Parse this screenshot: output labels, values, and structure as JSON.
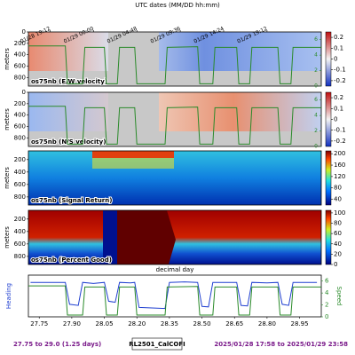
{
  "header": {
    "title": "UTC dates (MM/DD hh:mm)"
  },
  "chart_data": [
    {
      "type": "heatmap",
      "label": "os75nb (E/W velocity)",
      "ylabel": "meters",
      "xlim": [
        27.7,
        29.05
      ],
      "ylim": [
        950,
        0
      ],
      "yticks": [
        0,
        200,
        400,
        600,
        800
      ],
      "x2ticks": [
        {
          "value": 27.8,
          "label": "01/28 19:12"
        },
        {
          "value": 28.0,
          "label": "01/29 00:00"
        },
        {
          "value": 28.2,
          "label": "01/29 04:48"
        },
        {
          "value": 28.4,
          "label": "01/29 09:36"
        },
        {
          "value": 28.6,
          "label": "01/29 14:24"
        },
        {
          "value": 28.8,
          "label": "01/29 19:12"
        }
      ],
      "y2lim": [
        0,
        7
      ],
      "y2ticks": [
        0,
        2,
        4,
        6
      ],
      "clim": [
        -0.25,
        0.25
      ],
      "cticks": [
        -0.2,
        -0.1,
        0.0,
        0.1,
        0.2
      ],
      "colormap": "diverging"
    },
    {
      "type": "heatmap",
      "label": "os75nb (N/S velocity)",
      "ylabel": "meters",
      "xlim": [
        27.7,
        29.05
      ],
      "ylim": [
        950,
        0
      ],
      "yticks": [
        0,
        200,
        400,
        600,
        800
      ],
      "y2lim": [
        0,
        7
      ],
      "y2ticks": [
        0,
        2,
        4,
        6
      ],
      "clim": [
        -0.25,
        0.25
      ],
      "cticks": [
        -0.2,
        -0.1,
        0.0,
        0.1,
        0.2
      ],
      "colormap": "diverging"
    },
    {
      "type": "heatmap",
      "label": "os75nb (Signal Return)",
      "ylabel": "meters",
      "xlim": [
        27.7,
        29.05
      ],
      "ylim": [
        930,
        60
      ],
      "yticks": [
        200,
        400,
        600,
        800
      ],
      "clim": [
        20,
        210
      ],
      "cticks": [
        40,
        80,
        120,
        160,
        200
      ],
      "colormap": "jet"
    },
    {
      "type": "heatmap",
      "label": "os75nb (Percent Good)",
      "ylabel": "meters",
      "xlabel": "decimal day",
      "xlim": [
        27.7,
        29.05
      ],
      "ylim": [
        930,
        60
      ],
      "yticks": [
        200,
        400,
        600,
        800
      ],
      "clim": [
        0,
        105
      ],
      "cticks": [
        0,
        20,
        40,
        60,
        80,
        100
      ],
      "colormap": "jet"
    },
    {
      "type": "line",
      "ylabel": "Heading",
      "xlim": [
        27.7,
        29.05
      ],
      "ylim": [
        0,
        400
      ],
      "y2lim": [
        0,
        7
      ],
      "y2ticks": [
        0,
        2,
        4,
        6
      ],
      "xticks": [
        27.75,
        {
          "value": 27.9,
          "label": "27.90"
        },
        28.05,
        {
          "value": 28.2,
          "label": "28.20"
        },
        28.35,
        {
          "value": 28.5,
          "label": "28.50"
        },
        28.65,
        {
          "value": 28.8,
          "label": "28.80"
        },
        28.95
      ],
      "series": [
        {
          "name": "Heading",
          "color": "#1f3fd0",
          "axis": "y",
          "x": [
            27.71,
            27.8,
            27.87,
            27.89,
            27.93,
            27.95,
            28.0,
            28.05,
            28.07,
            28.1,
            28.12,
            28.17,
            28.19,
            28.21,
            28.27,
            28.33,
            28.35,
            28.42,
            28.48,
            28.5,
            28.53,
            28.55,
            28.6,
            28.66,
            28.68,
            28.71,
            28.73,
            28.8,
            28.85,
            28.87,
            28.9,
            28.92,
            28.98,
            29.03
          ],
          "values": [
            330,
            330,
            330,
            120,
            110,
            330,
            320,
            330,
            150,
            140,
            330,
            325,
            330,
            90,
            85,
            80,
            330,
            335,
            330,
            100,
            95,
            330,
            330,
            330,
            110,
            105,
            330,
            325,
            330,
            120,
            110,
            330,
            330,
            330
          ]
        },
        {
          "name": "Speed",
          "color": "#2a8a2a",
          "axis": "y2",
          "x": [
            27.7,
            27.87,
            27.88,
            27.95,
            27.96,
            28.05,
            28.06,
            28.11,
            28.12,
            28.19,
            28.2,
            28.33,
            28.34,
            28.48,
            28.49,
            28.55,
            28.56,
            28.66,
            28.67,
            28.72,
            28.73,
            28.85,
            28.86,
            28.91,
            28.92,
            29.05
          ],
          "values": [
            5.2,
            5.2,
            0.3,
            0.3,
            5.0,
            5.0,
            0.3,
            0.3,
            5.0,
            5.0,
            0.3,
            0.3,
            5.0,
            5.1,
            0.3,
            0.3,
            5.0,
            5.0,
            0.3,
            0.3,
            5.0,
            5.0,
            0.3,
            0.3,
            5.0,
            5.0
          ]
        }
      ]
    }
  ],
  "footer": {
    "left": "27.75 to 29.0 (1.25 days)",
    "center": "RL2501_CalCOFI",
    "right": "2025/01/28 17:58 to 2025/01/29 23:58"
  }
}
